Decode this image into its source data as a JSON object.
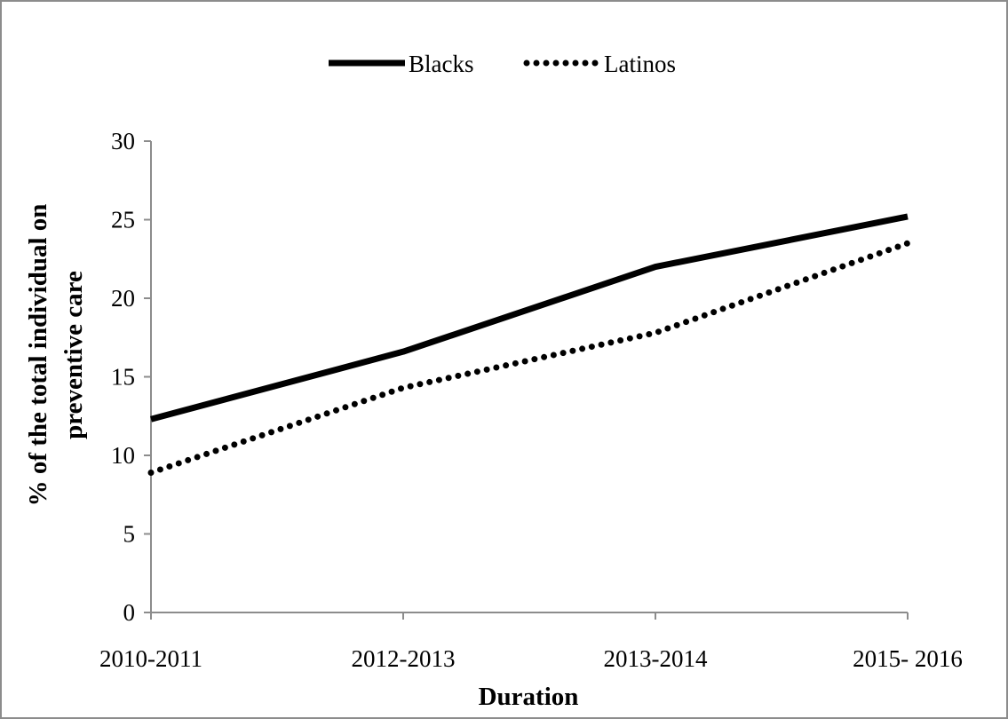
{
  "chart_data": {
    "type": "line",
    "title": "",
    "xlabel": "Duration",
    "ylabel": "% of the total individual on preventive care",
    "ylabel_lines": [
      "% of the total individual on",
      "preventive care"
    ],
    "categories": [
      "2010-2011",
      "2012-2013",
      "2013-2014",
      "2015- 2016"
    ],
    "ylim": [
      0,
      30
    ],
    "yticks": [
      0,
      5,
      10,
      15,
      20,
      25,
      30
    ],
    "grid": false,
    "legend_position": "top-center",
    "series": [
      {
        "name": "Blacks",
        "values": [
          12.3,
          16.6,
          22.0,
          25.2
        ],
        "style": "solid",
        "color": "#000000"
      },
      {
        "name": "Latinos",
        "values": [
          8.9,
          14.3,
          17.8,
          23.5
        ],
        "style": "dotted",
        "color": "#000000"
      }
    ]
  }
}
